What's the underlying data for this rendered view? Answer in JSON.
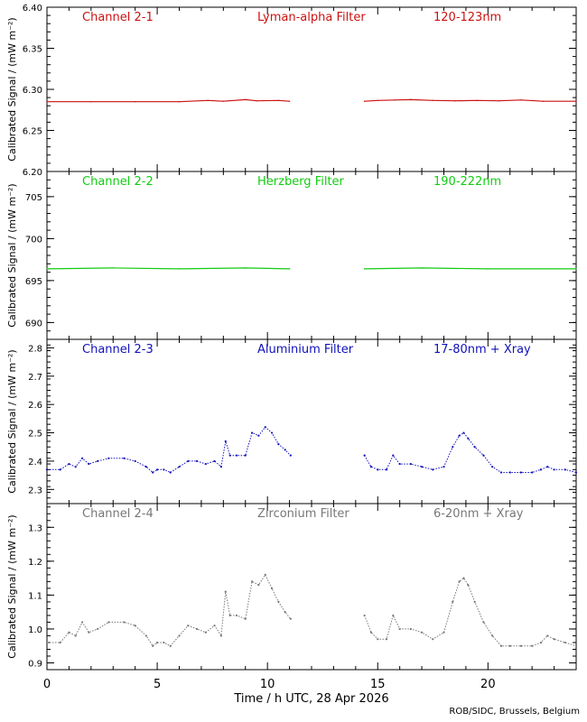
{
  "credit": "ROB/SIDC, Brussels, Belgium",
  "x_axis": {
    "title": "Time / h UTC, 28 Apr 2026",
    "range": [
      0,
      24
    ],
    "ticks": [
      0,
      5,
      10,
      15,
      20
    ],
    "tick_labels": [
      "0",
      "5",
      "10",
      "15",
      "20"
    ]
  },
  "chart_data": [
    {
      "type": "line",
      "channel": "Channel 2-1",
      "filter": "Lyman-alpha Filter",
      "band": "120-123nm",
      "ylabel": "Calibrated Signal / (mW m⁻²)",
      "color": "#cc1111",
      "ylim": [
        6.2,
        6.4
      ],
      "yticks": [
        "6.20",
        "6.25",
        "6.30",
        "6.35",
        "6.40"
      ],
      "gap": [
        11.0,
        14.4
      ],
      "x": [
        0,
        2,
        4,
        6,
        7.3,
        8,
        9.0,
        9.5,
        10.5,
        11.0,
        14.4,
        15,
        15.8,
        16.5,
        17.5,
        18.5,
        19.5,
        20.5,
        21.5,
        22.5,
        24
      ],
      "y": [
        6.285,
        6.285,
        6.285,
        6.285,
        6.2865,
        6.2855,
        6.2875,
        6.286,
        6.2865,
        6.2855,
        6.2855,
        6.2865,
        6.287,
        6.2875,
        6.2865,
        6.286,
        6.2865,
        6.286,
        6.287,
        6.2855,
        6.2855
      ]
    },
    {
      "type": "line",
      "channel": "Channel 2-2",
      "filter": "Herzberg Filter",
      "band": "190-222nm",
      "ylabel": "Calibrated Signal / (mW m⁻²)",
      "color": "#11cc11",
      "ylim": [
        688,
        708
      ],
      "yticks": [
        "690",
        "695",
        "700",
        "705"
      ],
      "gap": [
        11.0,
        14.4
      ],
      "x": [
        0,
        3,
        6,
        9,
        11.0,
        14.4,
        17,
        20,
        24
      ],
      "y": [
        696.4,
        696.5,
        696.4,
        696.5,
        696.4,
        696.4,
        696.5,
        696.4,
        696.4
      ]
    },
    {
      "type": "scatter",
      "channel": "Channel 2-3",
      "filter": "Aluminium Filter",
      "band": "17-80nm + Xray",
      "ylabel": "Calibrated Signal / (mW m⁻²)",
      "color": "#1111bb",
      "ylim": [
        2.25,
        2.83
      ],
      "yticks": [
        "2.3",
        "2.4",
        "2.5",
        "2.6",
        "2.7",
        "2.8"
      ],
      "gap": [
        11.05,
        14.4
      ],
      "x": [
        0,
        0.6,
        1.0,
        1.3,
        1.6,
        1.9,
        2.3,
        2.8,
        3.5,
        4.0,
        4.5,
        4.8,
        5.0,
        5.3,
        5.6,
        6.0,
        6.4,
        6.8,
        7.2,
        7.6,
        7.9,
        8.1,
        8.3,
        8.6,
        9.0,
        9.3,
        9.6,
        9.9,
        10.2,
        10.5,
        10.8,
        11.05,
        14.4,
        14.7,
        15.0,
        15.4,
        15.7,
        16.0,
        16.5,
        17.0,
        17.5,
        18.0,
        18.4,
        18.7,
        18.9,
        19.1,
        19.4,
        19.8,
        20.2,
        20.6,
        21.0,
        21.5,
        22.0,
        22.4,
        22.7,
        23.0,
        23.5,
        24
      ],
      "y": [
        2.37,
        2.37,
        2.39,
        2.38,
        2.41,
        2.39,
        2.4,
        2.41,
        2.41,
        2.4,
        2.38,
        2.36,
        2.37,
        2.37,
        2.36,
        2.38,
        2.4,
        2.4,
        2.39,
        2.4,
        2.38,
        2.47,
        2.42,
        2.42,
        2.42,
        2.5,
        2.49,
        2.52,
        2.5,
        2.46,
        2.44,
        2.42,
        2.42,
        2.38,
        2.37,
        2.37,
        2.42,
        2.39,
        2.39,
        2.38,
        2.37,
        2.38,
        2.45,
        2.49,
        2.5,
        2.48,
        2.45,
        2.42,
        2.38,
        2.36,
        2.36,
        2.36,
        2.36,
        2.37,
        2.38,
        2.37,
        2.37,
        2.36
      ]
    },
    {
      "type": "scatter",
      "channel": "Channel 2-4",
      "filter": "Zirconium Filter",
      "band": "6-20nm + Xray",
      "ylabel": "Calibrated Signal / (mW m⁻²)",
      "color": "#777777",
      "ylim": [
        0.88,
        1.37
      ],
      "yticks": [
        "0.9",
        "1.0",
        "1.1",
        "1.2",
        "1.3"
      ],
      "gap": [
        11.05,
        14.4
      ],
      "x": [
        0,
        0.6,
        1.0,
        1.3,
        1.6,
        1.9,
        2.3,
        2.8,
        3.5,
        4.0,
        4.5,
        4.8,
        5.0,
        5.3,
        5.6,
        6.0,
        6.4,
        6.8,
        7.2,
        7.6,
        7.9,
        8.1,
        8.3,
        8.6,
        9.0,
        9.3,
        9.6,
        9.9,
        10.2,
        10.5,
        10.8,
        11.05,
        14.4,
        14.7,
        15.0,
        15.4,
        15.7,
        16.0,
        16.5,
        17.0,
        17.5,
        18.0,
        18.4,
        18.7,
        18.9,
        19.1,
        19.4,
        19.8,
        20.2,
        20.6,
        21.0,
        21.5,
        22.0,
        22.4,
        22.7,
        23.0,
        23.5,
        24
      ],
      "y": [
        0.96,
        0.96,
        0.99,
        0.98,
        1.02,
        0.99,
        1.0,
        1.02,
        1.02,
        1.01,
        0.98,
        0.95,
        0.96,
        0.96,
        0.95,
        0.98,
        1.01,
        1.0,
        0.99,
        1.01,
        0.98,
        1.11,
        1.04,
        1.04,
        1.03,
        1.14,
        1.13,
        1.16,
        1.12,
        1.08,
        1.05,
        1.03,
        1.04,
        0.99,
        0.97,
        0.97,
        1.04,
        1.0,
        1.0,
        0.99,
        0.97,
        0.99,
        1.08,
        1.14,
        1.15,
        1.13,
        1.08,
        1.02,
        0.98,
        0.95,
        0.95,
        0.95,
        0.95,
        0.96,
        0.98,
        0.97,
        0.96,
        0.95
      ]
    }
  ]
}
